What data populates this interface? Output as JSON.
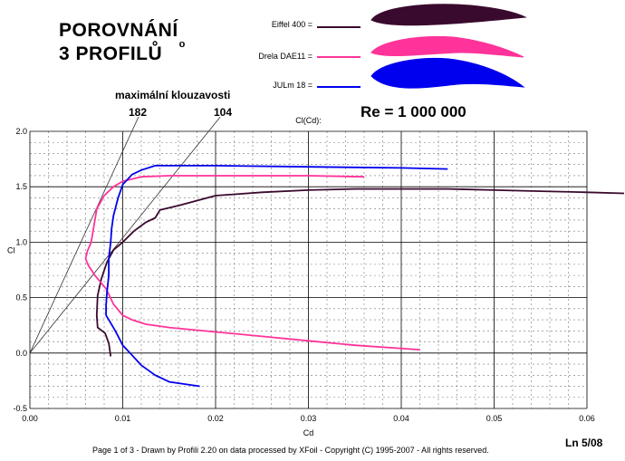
{
  "header": {
    "title_line1": "POROVNÁNÍ",
    "title_line2": "3  PROFILŮ",
    "re_label": "Re = 1 000 000",
    "max_glide_label": "maximální klouzavosti",
    "glide_value_1": "182",
    "glide_value_2": "104"
  },
  "legend": [
    {
      "label": "Eiffel 400 =",
      "color": "#3a0a2e"
    },
    {
      "label": "Drela DAE11 =",
      "color": "#ff3399"
    },
    {
      "label": "JULm 18 =",
      "color": "#0000ee"
    }
  ],
  "footer": {
    "page_info": "Page 1 of 3  -  Drawn by Profili 2.20 on data processed by  XFoil - Copyright (C) 1995-2007 - All rights reserved.",
    "ln_label": "Ln 5/08"
  },
  "chart_data": {
    "type": "line",
    "title": "Cl(Cd):",
    "xlabel": "Cd",
    "ylabel": "Cl",
    "xlim": [
      0,
      0.06
    ],
    "ylim": [
      -0.5,
      2.0
    ],
    "xticks": [
      "0.00",
      "0.01",
      "0.02",
      "0.03",
      "0.04",
      "0.05",
      "0.06"
    ],
    "yticks": [
      "-0.5",
      "0.0",
      "0.5",
      "1.0",
      "1.5",
      "2.0"
    ],
    "grid": true,
    "series": [
      {
        "name": "Eiffel 400",
        "color": "#3a0a2e",
        "x": [
          0.0087,
          0.0085,
          0.0081,
          0.0073,
          0.0072,
          0.0073,
          0.0077,
          0.0083,
          0.009,
          0.01,
          0.0112,
          0.0125,
          0.0135,
          0.014,
          0.016,
          0.02,
          0.025,
          0.03,
          0.035,
          0.04,
          0.045,
          0.05,
          0.055,
          0.06,
          0.064
        ],
        "y": [
          -0.03,
          0.09,
          0.18,
          0.23,
          0.34,
          0.52,
          0.67,
          0.82,
          0.93,
          1.0,
          1.1,
          1.18,
          1.22,
          1.29,
          1.33,
          1.42,
          1.45,
          1.47,
          1.48,
          1.48,
          1.48,
          1.47,
          1.46,
          1.45,
          1.44
        ]
      },
      {
        "name": "Drela DAE11",
        "color": "#ff3399",
        "x": [
          0.042,
          0.035,
          0.03,
          0.025,
          0.02,
          0.015,
          0.0125,
          0.011,
          0.01,
          0.009,
          0.0082,
          0.007,
          0.0063,
          0.006,
          0.0062,
          0.0066,
          0.0068,
          0.007,
          0.0072,
          0.008,
          0.009,
          0.01,
          0.012,
          0.015,
          0.02,
          0.03,
          0.036
        ],
        "y": [
          0.03,
          0.07,
          0.11,
          0.15,
          0.19,
          0.23,
          0.26,
          0.3,
          0.34,
          0.44,
          0.58,
          0.7,
          0.79,
          0.85,
          0.92,
          1.0,
          1.1,
          1.2,
          1.3,
          1.42,
          1.5,
          1.55,
          1.59,
          1.6,
          1.6,
          1.6,
          1.59
        ]
      },
      {
        "name": "JULm 18",
        "color": "#0000ee",
        "x": [
          0.0183,
          0.015,
          0.0135,
          0.012,
          0.011,
          0.01,
          0.0092,
          0.0085,
          0.0082,
          0.0082,
          0.0083,
          0.0085,
          0.0085,
          0.0087,
          0.0088,
          0.009,
          0.0095,
          0.01,
          0.011,
          0.012,
          0.0135,
          0.015,
          0.02,
          0.03,
          0.04,
          0.045
        ],
        "y": [
          -0.3,
          -0.26,
          -0.2,
          -0.11,
          -0.02,
          0.07,
          0.2,
          0.3,
          0.34,
          0.43,
          0.55,
          0.7,
          0.85,
          1.0,
          1.12,
          1.24,
          1.4,
          1.52,
          1.61,
          1.65,
          1.69,
          1.69,
          1.69,
          1.68,
          1.67,
          1.66
        ]
      }
    ],
    "reference_lines": [
      {
        "label": "182",
        "x": [
          0,
          0.0117
        ],
        "y": [
          0,
          2.13
        ]
      },
      {
        "label": "104",
        "x": [
          0,
          0.0205
        ],
        "y": [
          0,
          2.13
        ]
      }
    ]
  }
}
